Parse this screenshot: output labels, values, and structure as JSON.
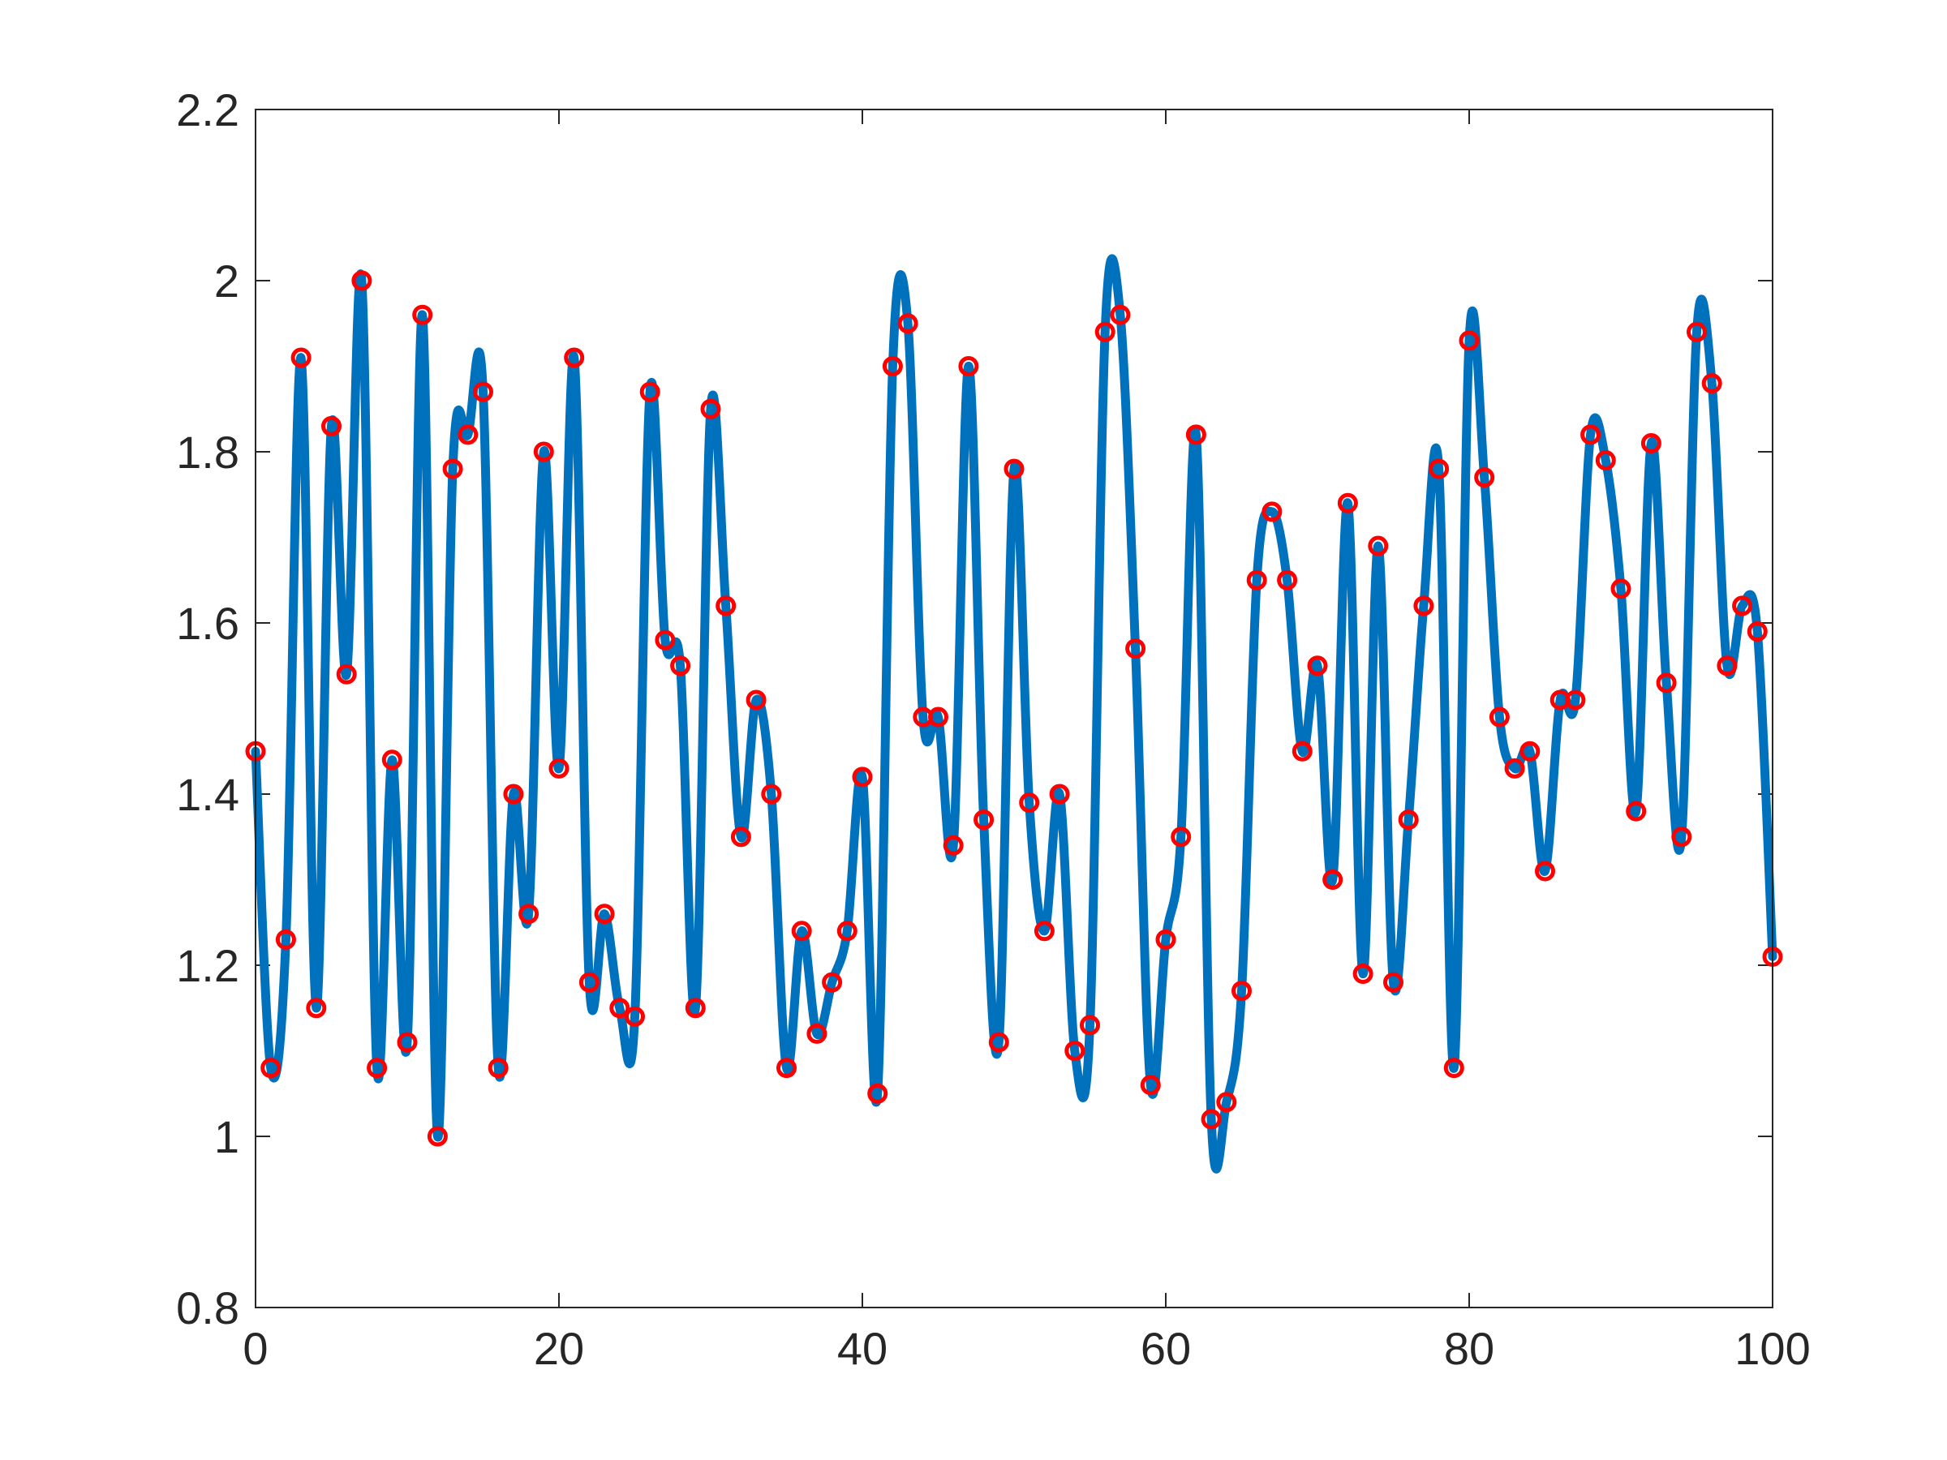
{
  "chart_data": {
    "type": "line",
    "title": "",
    "xlabel": "",
    "ylabel": "",
    "xlim": [
      0,
      100
    ],
    "ylim": [
      0.8,
      2.2
    ],
    "grid": false,
    "box": true,
    "xticks": [
      0,
      20,
      40,
      60,
      80,
      100
    ],
    "yticks": [
      0.8,
      1,
      1.2,
      1.4,
      1.6,
      1.8,
      2,
      2.2
    ],
    "xtick_labels": [
      "0",
      "20",
      "40",
      "60",
      "80",
      "100"
    ],
    "ytick_labels": [
      "0.8",
      "1",
      "1.2",
      "1.4",
      "1.6",
      "1.8",
      "2",
      "2.2"
    ],
    "series": [
      {
        "style": "smooth-line",
        "color": "#0072BD",
        "x": [
          0,
          1,
          2,
          3,
          4,
          5,
          6,
          7,
          8,
          9,
          10,
          11,
          12,
          13,
          14,
          15,
          16,
          17,
          18,
          19,
          20,
          21,
          22,
          23,
          24,
          25,
          26,
          27,
          28,
          29,
          30,
          31,
          32,
          33,
          34,
          35,
          36,
          37,
          38,
          39,
          40,
          41,
          42,
          43,
          44,
          45,
          46,
          47,
          48,
          49,
          50,
          51,
          52,
          53,
          54,
          55,
          56,
          57,
          58,
          59,
          60,
          61,
          62,
          63,
          64,
          65,
          66,
          67,
          68,
          69,
          70,
          71,
          72,
          73,
          74,
          75,
          76,
          77,
          78,
          79,
          80,
          81,
          82,
          83,
          84,
          85,
          86,
          87,
          88,
          89,
          90,
          91,
          92,
          93,
          94,
          95,
          96,
          97,
          98,
          99,
          100
        ],
        "y": [
          1.45,
          1.08,
          1.23,
          1.91,
          1.15,
          1.83,
          1.54,
          2.0,
          1.08,
          1.44,
          1.11,
          1.96,
          1.0,
          1.78,
          1.82,
          1.87,
          1.08,
          1.4,
          1.26,
          1.8,
          1.43,
          1.91,
          1.18,
          1.26,
          1.15,
          1.14,
          1.87,
          1.58,
          1.55,
          1.15,
          1.85,
          1.62,
          1.35,
          1.51,
          1.4,
          1.08,
          1.24,
          1.12,
          1.18,
          1.24,
          1.42,
          1.05,
          1.9,
          1.95,
          1.49,
          1.49,
          1.34,
          1.9,
          1.37,
          1.11,
          1.78,
          1.39,
          1.24,
          1.4,
          1.1,
          1.13,
          1.94,
          1.96,
          1.57,
          1.06,
          1.23,
          1.35,
          1.82,
          1.02,
          1.04,
          1.17,
          1.65,
          1.73,
          1.65,
          1.45,
          1.55,
          1.3,
          1.74,
          1.19,
          1.69,
          1.18,
          1.37,
          1.62,
          1.78,
          1.08,
          1.93,
          1.77,
          1.49,
          1.43,
          1.45,
          1.31,
          1.51,
          1.51,
          1.82,
          1.79,
          1.64,
          1.38,
          1.81,
          1.53,
          1.35,
          1.94,
          1.88,
          1.55,
          1.62,
          1.59,
          1.21
        ]
      },
      {
        "style": "markers",
        "marker": "circle",
        "color": "#FF0000",
        "x": [
          0,
          1,
          2,
          3,
          4,
          5,
          6,
          7,
          8,
          9,
          10,
          11,
          12,
          13,
          14,
          15,
          16,
          17,
          18,
          19,
          20,
          21,
          22,
          23,
          24,
          25,
          26,
          27,
          28,
          29,
          30,
          31,
          32,
          33,
          34,
          35,
          36,
          37,
          38,
          39,
          40,
          41,
          42,
          43,
          44,
          45,
          46,
          47,
          48,
          49,
          50,
          51,
          52,
          53,
          54,
          55,
          56,
          57,
          58,
          59,
          60,
          61,
          62,
          63,
          64,
          65,
          66,
          67,
          68,
          69,
          70,
          71,
          72,
          73,
          74,
          75,
          76,
          77,
          78,
          79,
          80,
          81,
          82,
          83,
          84,
          85,
          86,
          87,
          88,
          89,
          90,
          91,
          92,
          93,
          94,
          95,
          96,
          97,
          98,
          99,
          100
        ],
        "y": [
          1.45,
          1.08,
          1.23,
          1.91,
          1.15,
          1.83,
          1.54,
          2.0,
          1.08,
          1.44,
          1.11,
          1.96,
          1.0,
          1.78,
          1.82,
          1.87,
          1.08,
          1.4,
          1.26,
          1.8,
          1.43,
          1.91,
          1.18,
          1.26,
          1.15,
          1.14,
          1.87,
          1.58,
          1.55,
          1.15,
          1.85,
          1.62,
          1.35,
          1.51,
          1.4,
          1.08,
          1.24,
          1.12,
          1.18,
          1.24,
          1.42,
          1.05,
          1.9,
          1.95,
          1.49,
          1.49,
          1.34,
          1.9,
          1.37,
          1.11,
          1.78,
          1.39,
          1.24,
          1.4,
          1.1,
          1.13,
          1.94,
          1.96,
          1.57,
          1.06,
          1.23,
          1.35,
          1.82,
          1.02,
          1.04,
          1.17,
          1.65,
          1.73,
          1.65,
          1.45,
          1.55,
          1.3,
          1.74,
          1.19,
          1.69,
          1.18,
          1.37,
          1.62,
          1.78,
          1.08,
          1.93,
          1.77,
          1.49,
          1.43,
          1.45,
          1.31,
          1.51,
          1.51,
          1.82,
          1.79,
          1.64,
          1.38,
          1.81,
          1.53,
          1.35,
          1.94,
          1.88,
          1.55,
          1.62,
          1.59,
          1.21
        ]
      }
    ]
  }
}
